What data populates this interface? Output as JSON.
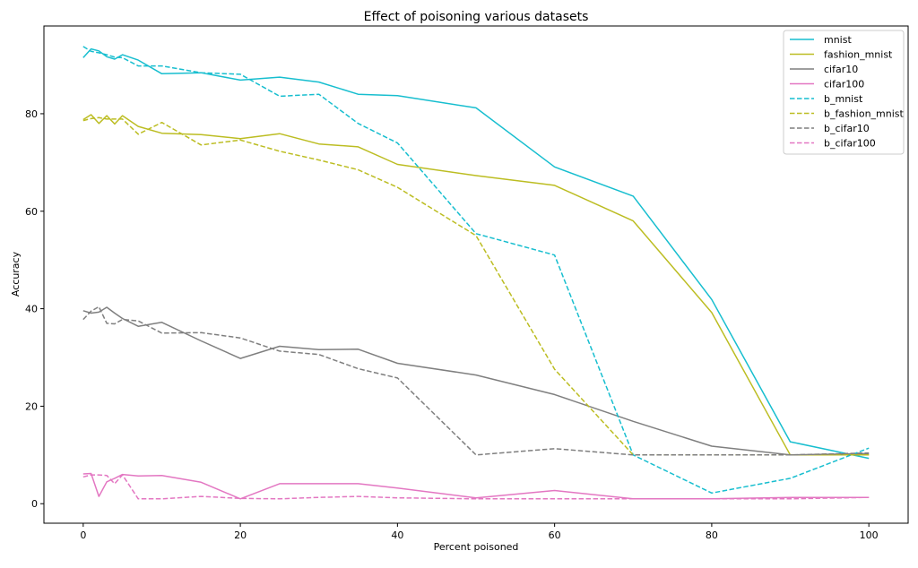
{
  "chart_data": {
    "type": "line",
    "title": "Effect of poisoning various datasets",
    "xlabel": "Percent poisoned",
    "ylabel": "Accuracy",
    "xlim": [
      -5,
      105
    ],
    "ylim": [
      -4,
      98
    ],
    "xticks": [
      0,
      20,
      40,
      60,
      80,
      100
    ],
    "yticks": [
      0,
      20,
      40,
      60,
      80
    ],
    "grid": false,
    "legend_position": "top-right",
    "x": [
      0,
      1,
      2,
      3,
      4,
      5,
      7,
      10,
      15,
      20,
      25,
      30,
      35,
      40,
      50,
      60,
      70,
      80,
      90,
      100
    ],
    "series": [
      {
        "name": "mnist",
        "color": "#17becf",
        "dashed": false,
        "values": [
          91.5,
          93.3,
          92.9,
          91.7,
          91.2,
          92.1,
          91.0,
          88.2,
          88.4,
          86.9,
          87.5,
          86.5,
          84.0,
          83.7,
          81.2,
          69.1,
          63.1,
          41.9,
          12.7,
          9.3
        ]
      },
      {
        "name": "fashion_mnist",
        "color": "#bcbd22",
        "dashed": false,
        "values": [
          78.8,
          79.8,
          78.0,
          79.6,
          77.9,
          79.6,
          77.4,
          76.0,
          75.7,
          74.9,
          75.9,
          73.8,
          73.2,
          69.6,
          67.3,
          65.3,
          58.0,
          39.2,
          10.0,
          10.0
        ]
      },
      {
        "name": "cifar10",
        "color": "#7f7f7f",
        "dashed": false,
        "values": [
          39.6,
          39.1,
          39.3,
          40.3,
          39.1,
          38.0,
          36.4,
          37.2,
          33.4,
          29.8,
          32.3,
          31.6,
          31.7,
          28.8,
          26.4,
          22.4,
          16.9,
          11.8,
          10.0,
          10.3
        ]
      },
      {
        "name": "cifar100",
        "color": "#e377c2",
        "dashed": false,
        "values": [
          6.1,
          6.2,
          1.5,
          4.5,
          5.2,
          6.0,
          5.7,
          5.8,
          4.4,
          1.0,
          4.1,
          4.1,
          4.1,
          3.2,
          1.2,
          2.7,
          1.0,
          1.0,
          1.3,
          1.3
        ]
      },
      {
        "name": "b_mnist",
        "color": "#17becf",
        "dashed": true,
        "values": [
          93.8,
          92.8,
          92.5,
          92.1,
          91.6,
          91.5,
          89.8,
          89.8,
          88.4,
          88.1,
          83.6,
          84.0,
          78.0,
          74.0,
          55.4,
          51.0,
          10.0,
          2.2,
          5.2,
          11.4
        ]
      },
      {
        "name": "b_fashion_mnist",
        "color": "#bcbd22",
        "dashed": true,
        "values": [
          78.6,
          79.0,
          79.2,
          78.9,
          78.9,
          78.9,
          75.8,
          78.2,
          73.6,
          74.6,
          72.3,
          70.5,
          68.5,
          64.9,
          55.0,
          27.6,
          10.0,
          10.0,
          10.0,
          10.0
        ]
      },
      {
        "name": "b_cifar10",
        "color": "#7f7f7f",
        "dashed": true,
        "values": [
          37.8,
          39.5,
          40.4,
          37.0,
          36.9,
          37.8,
          37.5,
          35.0,
          35.1,
          34.0,
          31.3,
          30.6,
          27.7,
          25.8,
          10.0,
          11.3,
          10.0,
          10.0,
          10.0,
          10.4
        ]
      },
      {
        "name": "b_cifar100",
        "color": "#e377c2",
        "dashed": true,
        "values": [
          5.5,
          5.9,
          5.9,
          5.8,
          4.1,
          5.9,
          1.0,
          1.0,
          1.5,
          1.1,
          1.0,
          1.3,
          1.5,
          1.2,
          1.0,
          1.0,
          1.0,
          1.0,
          1.0,
          1.3
        ]
      }
    ]
  }
}
